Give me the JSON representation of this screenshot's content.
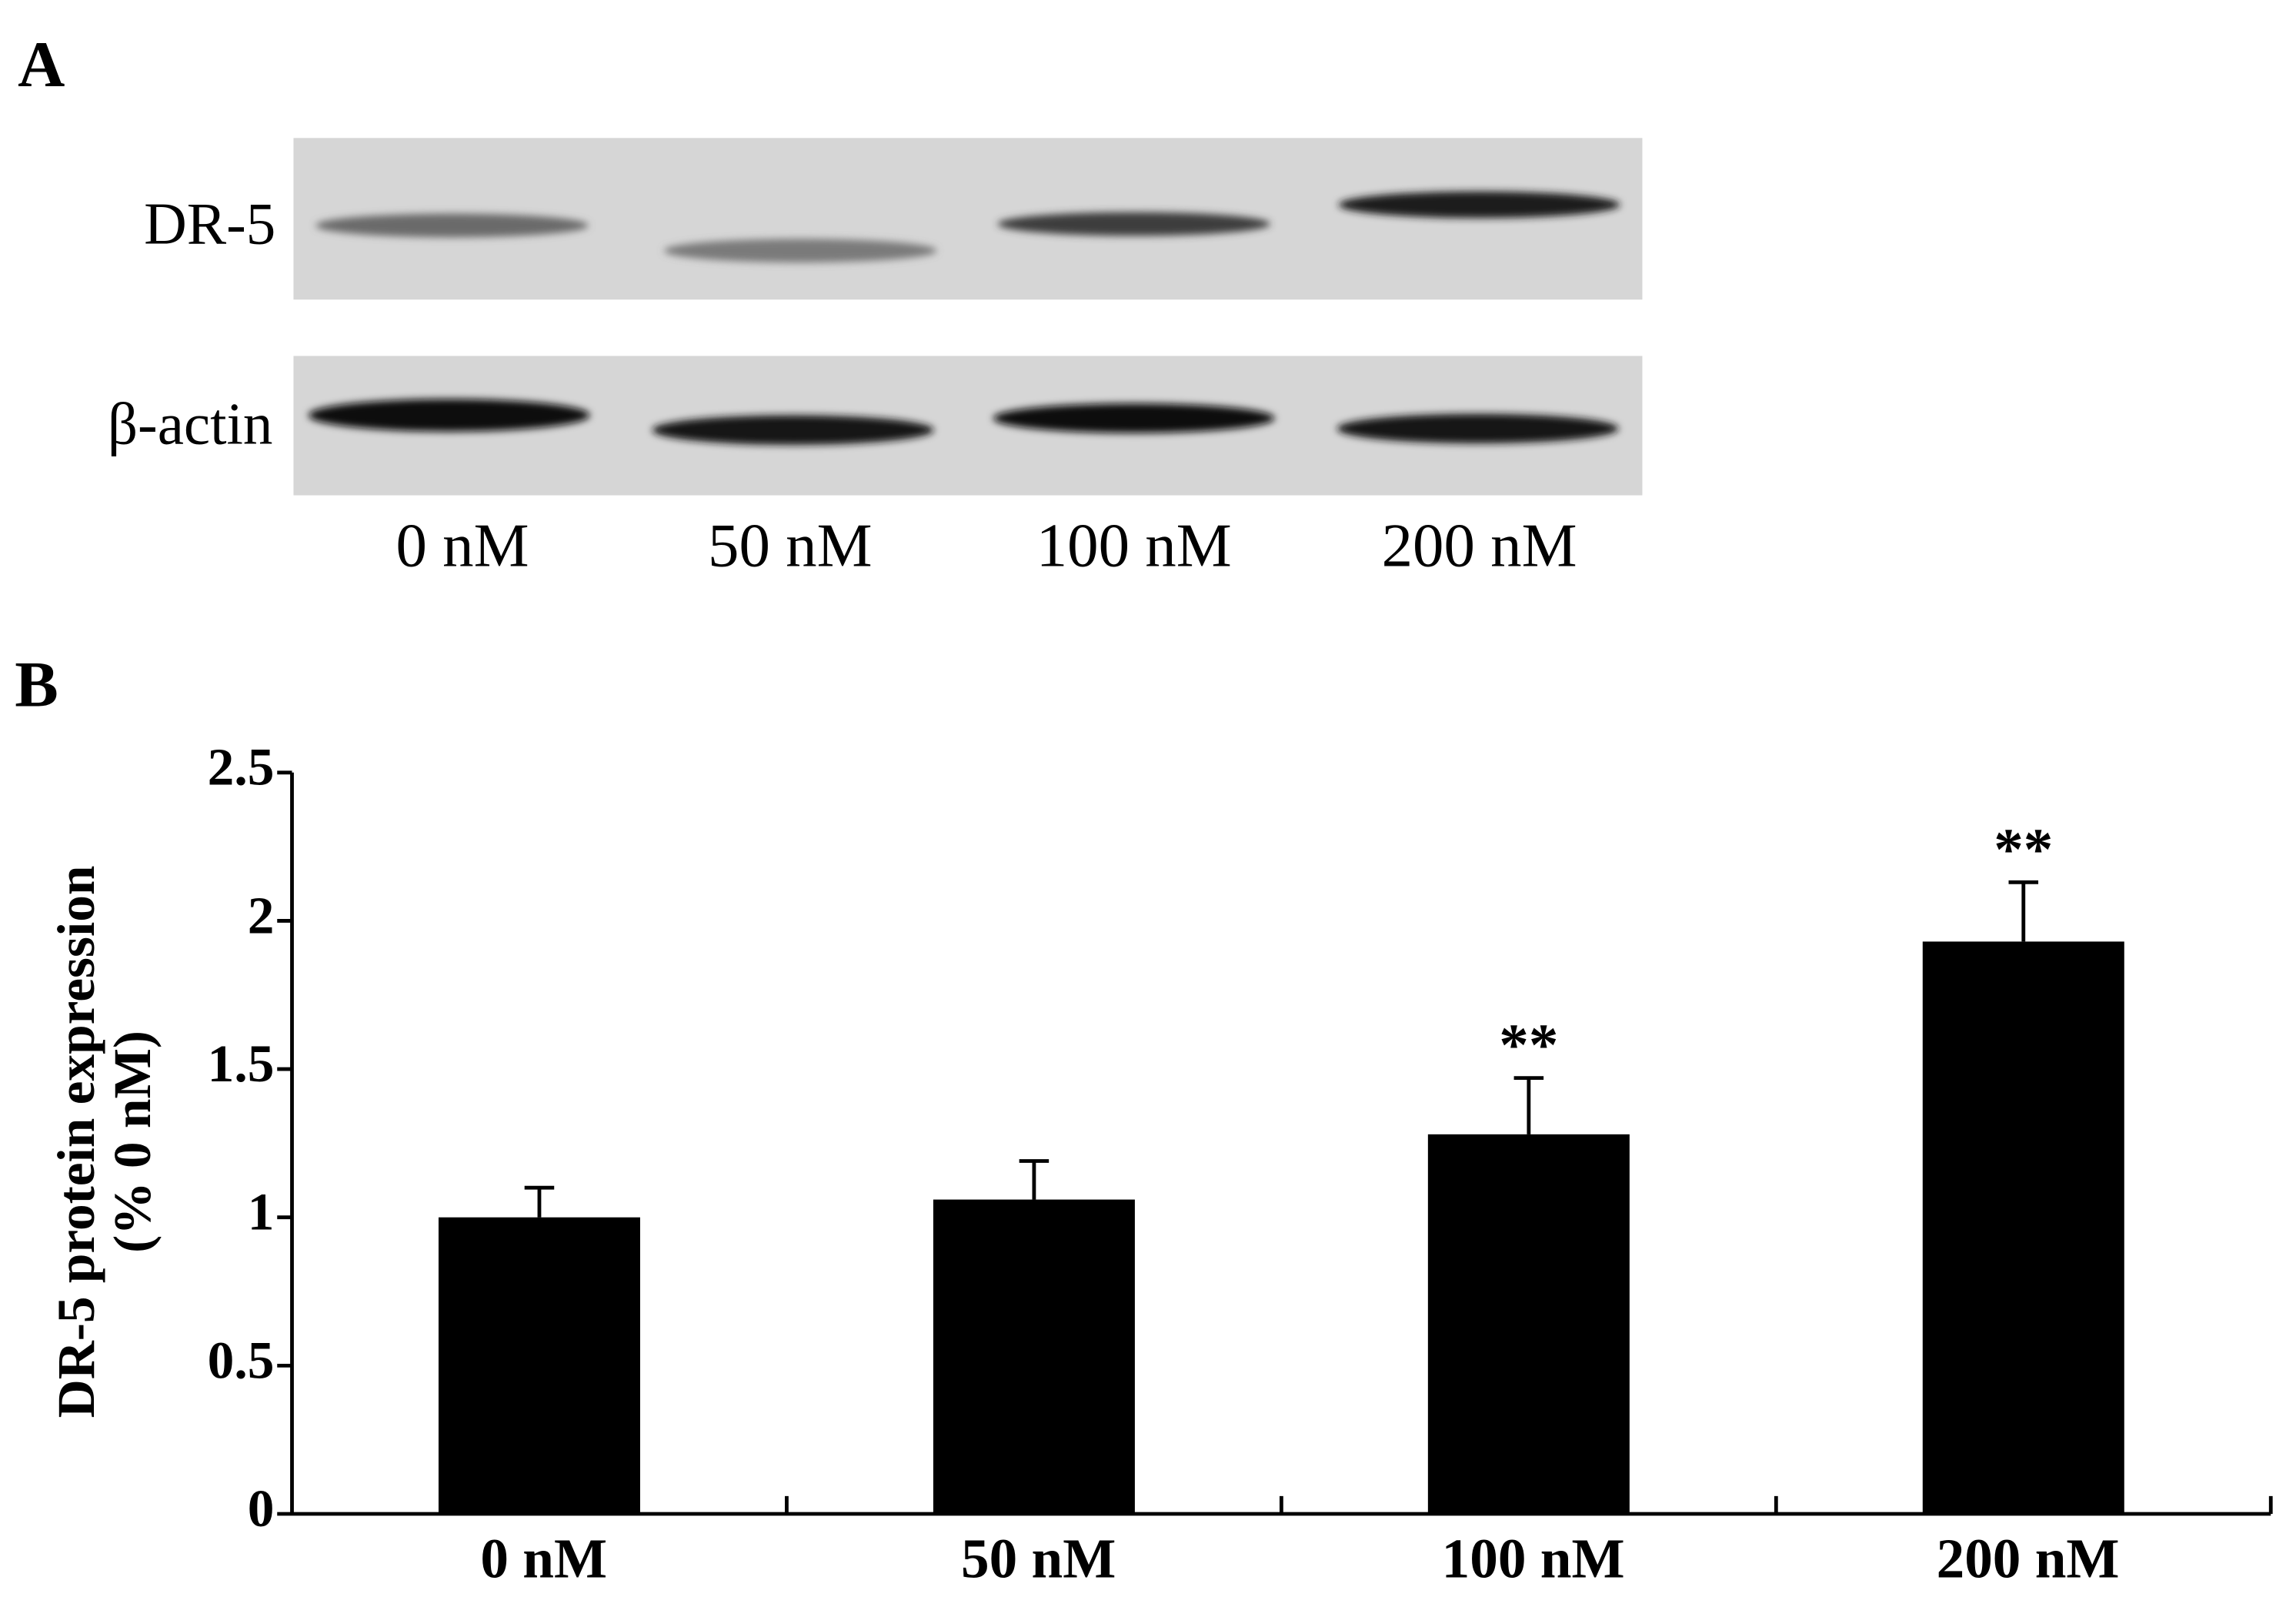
{
  "panel_a": {
    "label": "A",
    "rows": [
      "DR-5",
      "β-actin"
    ],
    "lanes": [
      "0 nM",
      "50 nM",
      "100 nM",
      "200 nM"
    ]
  },
  "chart_data": {
    "type": "bar",
    "label": "B",
    "y_label": [
      "DR-5 protein expression",
      "(% 0 nM)"
    ],
    "categories": [
      "0 nM",
      "50 nM",
      "100 nM",
      "200 nM"
    ],
    "values": [
      1.0,
      1.06,
      1.28,
      1.93
    ],
    "errors": [
      0.1,
      0.13,
      0.19,
      0.2
    ],
    "annotations": [
      null,
      null,
      "**",
      "**"
    ],
    "color": "#000000",
    "ylim": [
      0,
      2.5
    ],
    "yticks": [
      0,
      0.5,
      1,
      1.5,
      2,
      2.5
    ]
  }
}
